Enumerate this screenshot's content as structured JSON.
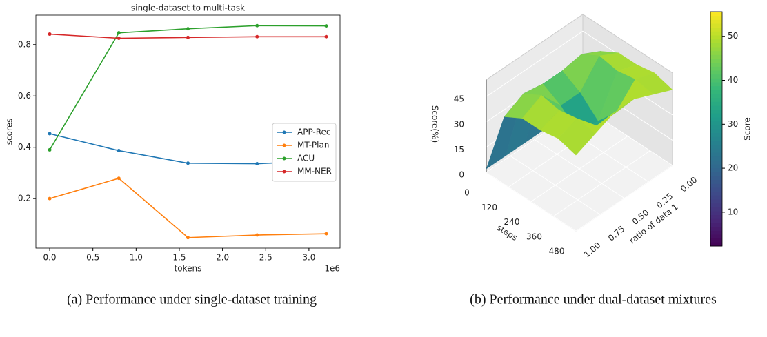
{
  "chart_data": [
    {
      "type": "line",
      "title": "single-dataset to multi-task",
      "xlabel": "tokens",
      "ylabel": "scores",
      "x_offset_label": "1e6",
      "caption": "(a) Performance under single-dataset training",
      "x": [
        0,
        0.8,
        1.6,
        2.4,
        3.2
      ],
      "series": [
        {
          "name": "APP-Rec",
          "color": "#1f77b4",
          "values": [
            0.453,
            0.387,
            0.338,
            0.336,
            0.347
          ]
        },
        {
          "name": "MT-Plan",
          "color": "#ff7f0e",
          "values": [
            0.2,
            0.279,
            0.048,
            0.058,
            0.063
          ]
        },
        {
          "name": "ACU",
          "color": "#2ca02c",
          "values": [
            0.39,
            0.846,
            0.862,
            0.874,
            0.873
          ]
        },
        {
          "name": "MM-NER",
          "color": "#d62728",
          "values": [
            0.841,
            0.825,
            0.828,
            0.831,
            0.831
          ]
        }
      ],
      "xlim": [
        -0.16,
        3.36
      ],
      "ylim": [
        0.007,
        0.915
      ],
      "xticks": [
        {
          "value": 0,
          "label": "0.0"
        },
        0.5,
        {
          "value": 1,
          "label": "1.0"
        },
        1.5,
        {
          "value": 2,
          "label": "2.0"
        },
        2.5,
        {
          "value": 3,
          "label": "3.0"
        }
      ],
      "yticks": [
        0.2,
        0.4,
        0.6,
        0.8
      ],
      "legend": "center right",
      "grid": false
    },
    {
      "type": "surface",
      "caption": "(b) Performance under dual-dataset mixtures",
      "xlabel": "steps",
      "ylabel": "ratio of data 1",
      "zlabel": "Score(%)",
      "colorbar_label": "Score",
      "x": [
        0,
        96,
        192,
        288,
        384,
        480
      ],
      "y": [
        0,
        0.2,
        0.4,
        0.6,
        0.8,
        1
      ],
      "z": [
        [
          2,
          2,
          2,
          2,
          2,
          2
        ],
        [
          40,
          46,
          44,
          44,
          46,
          40
        ],
        [
          46,
          52,
          38,
          38,
          52,
          46
        ],
        [
          46,
          50,
          28,
          28,
          50,
          46
        ],
        [
          48,
          52,
          40,
          40,
          52,
          48
        ],
        [
          45,
          50,
          55,
          55,
          50,
          45
        ]
      ],
      "xlim": [
        0,
        480
      ],
      "ylim": [
        0,
        1
      ],
      "zlim": [
        0,
        55
      ],
      "xticks": [
        0,
        120,
        240,
        360,
        480
      ],
      "yticks": [
        {
          "value": 0,
          "label": "0.00"
        },
        0.25,
        {
          "value": 0.5,
          "label": "0.50"
        },
        0.75,
        {
          "value": 1,
          "label": "1.00"
        }
      ],
      "zticks": [
        0,
        15,
        30,
        45
      ],
      "clim": [
        2.3,
        55.6
      ],
      "cticks": [
        10,
        20,
        30,
        40,
        50
      ],
      "colormap": "viridis"
    }
  ]
}
